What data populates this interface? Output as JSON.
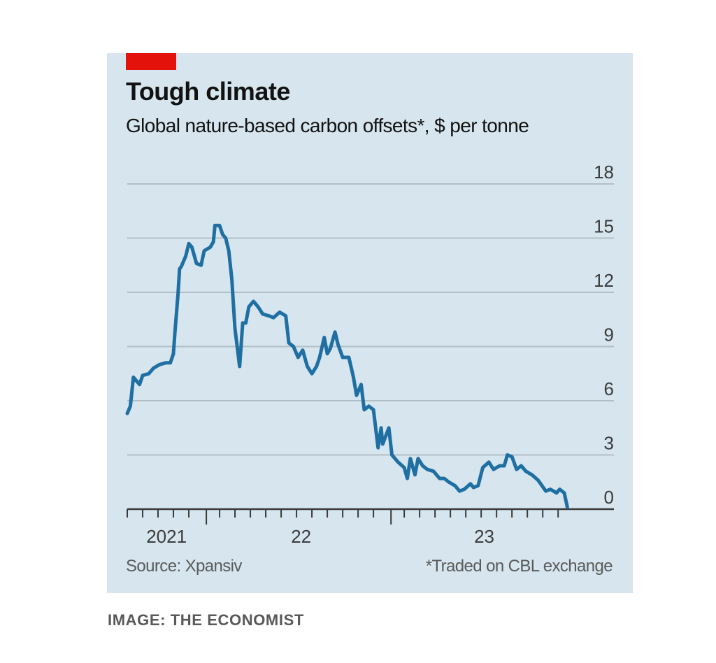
{
  "header": {
    "title": "Tough climate",
    "subtitle": "Global nature-based carbon offsets*, $ per tonne"
  },
  "footer": {
    "source": "Source: Xpansiv",
    "footnote": "*Traded on CBL exchange"
  },
  "credit": "IMAGE: THE ECONOMIST",
  "colors": {
    "accent": "#e3120b",
    "line": "#1f6fa3",
    "background": "#d6e5ee",
    "grid": "#b3bfc7"
  },
  "chart_data": {
    "type": "line",
    "title": "Tough climate",
    "subtitle": "Global nature-based carbon offsets*, $ per tonne",
    "xlabel": "",
    "ylabel": "$ per tonne",
    "x_unit": "months since Aug 2021",
    "xlim": [
      0,
      28.9
    ],
    "ylim": [
      0,
      18
    ],
    "yticks": [
      0,
      3,
      6,
      9,
      12,
      15,
      18
    ],
    "ytick_labels": [
      "0",
      "3",
      "6",
      "9",
      "12",
      "15",
      "18"
    ],
    "year_boundaries": [
      5.14,
      17.14
    ],
    "xtick_labels": [
      {
        "label": "2021",
        "x": 2.55
      },
      {
        "label": "22",
        "x": 11.3
      },
      {
        "label": "23",
        "x": 23.2
      }
    ],
    "grid": true,
    "legend": "none",
    "axis_side": "right",
    "series": [
      {
        "name": "Global nature-based carbon offsets",
        "x": [
          0,
          0.2,
          0.4,
          0.6,
          0.8,
          1.0,
          1.4,
          1.7,
          2.1,
          2.5,
          2.8,
          3.0,
          3.1,
          3.3,
          3.4,
          3.5,
          3.8,
          4.0,
          4.2,
          4.5,
          4.8,
          5.0,
          5.4,
          5.6,
          5.7,
          6.0,
          6.2,
          6.4,
          6.6,
          6.8,
          7.0,
          7.3,
          7.5,
          7.7,
          7.9,
          8.2,
          8.5,
          8.8,
          9.2,
          9.5,
          9.9,
          10.3,
          10.5,
          10.8,
          11.1,
          11.4,
          11.7,
          12.0,
          12.3,
          12.5,
          12.8,
          13.0,
          13.2,
          13.5,
          13.7,
          14.0,
          14.4,
          14.7,
          14.9,
          15.2,
          15.4,
          15.7,
          16.0,
          16.3,
          16.5,
          16.6,
          17.0,
          17.2,
          17.6,
          18.0,
          18.2,
          18.4,
          18.7,
          18.9,
          19.2,
          19.5,
          19.9,
          20.3,
          20.6,
          20.9,
          21.3,
          21.6,
          21.9,
          22.3,
          22.5,
          22.8,
          23.1,
          23.5,
          23.8,
          24.2,
          24.5,
          24.7,
          25.0,
          25.3,
          25.6,
          25.9,
          26.3,
          26.7,
          27.2,
          27.5,
          27.9,
          28.1,
          28.4,
          28.6
        ],
        "values": [
          5.3,
          5.7,
          7.3,
          7.1,
          6.9,
          7.4,
          7.5,
          7.8,
          8.0,
          8.1,
          8.1,
          8.6,
          9.8,
          11.9,
          13.3,
          13.4,
          14.0,
          14.7,
          14.5,
          13.6,
          13.5,
          14.3,
          14.5,
          14.8,
          15.7,
          15.7,
          15.2,
          15.0,
          14.3,
          12.7,
          10.0,
          7.9,
          10.3,
          10.3,
          11.2,
          11.5,
          11.2,
          10.8,
          10.7,
          10.6,
          10.9,
          10.7,
          9.2,
          9.0,
          8.4,
          8.8,
          7.9,
          7.5,
          7.9,
          8.4,
          9.5,
          8.6,
          8.9,
          9.8,
          9.1,
          8.4,
          8.4,
          7.3,
          6.3,
          6.9,
          5.5,
          5.7,
          5.5,
          3.4,
          4.5,
          3.6,
          4.5,
          3.0,
          2.6,
          2.3,
          1.7,
          2.8,
          1.9,
          2.8,
          2.4,
          2.2,
          2.1,
          1.7,
          1.7,
          1.5,
          1.3,
          1.0,
          1.1,
          1.4,
          1.2,
          1.3,
          2.3,
          2.6,
          2.2,
          2.4,
          2.4,
          3.0,
          2.9,
          2.2,
          2.4,
          2.1,
          1.9,
          1.6,
          1.0,
          1.1,
          0.9,
          1.1,
          0.9,
          0.1
        ]
      }
    ]
  }
}
